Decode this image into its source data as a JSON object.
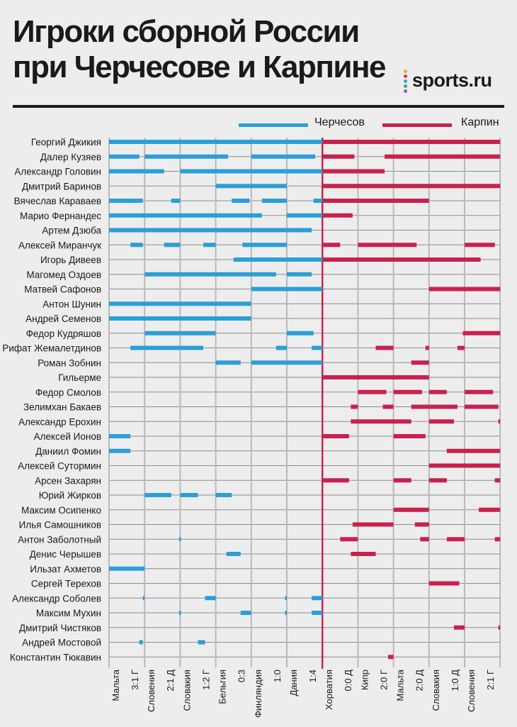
{
  "header": {
    "title_line1": "Игроки сборной России",
    "title_line2": "при Черчесове и Карпине",
    "logo_text": "sports.ru",
    "logo_dot_colors": [
      "#f6a91e",
      "#d93a3a",
      "#3aa0d8",
      "#2fb36b",
      "#9a58b8"
    ]
  },
  "legend": [
    {
      "label": "Черчесов",
      "color": "#2b9fd6"
    },
    {
      "label": "Карпин",
      "color": "#c8214e"
    }
  ],
  "chart_data": {
    "type": "timeline",
    "title": "Игроки сборной России при Черчесове и Карпине",
    "coach_change_after_match": 6,
    "coaches": [
      {
        "name": "Черчесов",
        "color": "#2b9fd6",
        "from_match": 0,
        "to_match": 6
      },
      {
        "name": "Карпин",
        "color": "#c8214e",
        "from_match": 6,
        "to_match": 11
      }
    ],
    "matches": [
      {
        "opponent": "Мальта",
        "score": "3:1 Г"
      },
      {
        "opponent": "Словения",
        "score": "2:1 Д"
      },
      {
        "opponent": "Словакия",
        "score": "1:2 Г"
      },
      {
        "opponent": "Бельгия",
        "score": "0:3"
      },
      {
        "opponent": "Финляндия",
        "score": "1:0"
      },
      {
        "opponent": "Дания",
        "score": "1:4"
      },
      {
        "opponent": "Хорватия",
        "score": "0:0 Д"
      },
      {
        "opponent": "Кипр",
        "score": "2:0 Г"
      },
      {
        "opponent": "Мальта",
        "score": "2:0 Д"
      },
      {
        "opponent": "Словакия",
        "score": "1:0 Д"
      },
      {
        "opponent": "Словения",
        "score": "2:1 Г"
      }
    ],
    "unit_note": "each segment is [start, end] in match units (0..11); fractional values = minute within match",
    "players": [
      {
        "name": "Георгий Джикия",
        "segments": [
          [
            0,
            11
          ]
        ]
      },
      {
        "name": "Далер Кузяев",
        "segments": [
          [
            0,
            0.85
          ],
          [
            1,
            3.35
          ],
          [
            4,
            5.8
          ],
          [
            6,
            6.9
          ],
          [
            7.75,
            11
          ]
        ]
      },
      {
        "name": "Александр Головин",
        "segments": [
          [
            0,
            1.55
          ],
          [
            2,
            7.75
          ]
        ]
      },
      {
        "name": "Дмитрий Баринов",
        "segments": [
          [
            3,
            5
          ],
          [
            6,
            11
          ]
        ]
      },
      {
        "name": "Вячеслав Караваев",
        "segments": [
          [
            0,
            0.95
          ],
          [
            1.75,
            2
          ],
          [
            3.45,
            3.95
          ],
          [
            4.3,
            5
          ],
          [
            5.75,
            9
          ]
        ]
      },
      {
        "name": "Марио Фернандес",
        "segments": [
          [
            0,
            4.3
          ],
          [
            5,
            6
          ],
          [
            6,
            6.85
          ]
        ]
      },
      {
        "name": "Артем Дзюба",
        "segments": [
          [
            0,
            5.7
          ]
        ]
      },
      {
        "name": "Алексей Миранчук",
        "segments": [
          [
            0.6,
            0.95
          ],
          [
            1.55,
            2
          ],
          [
            2.65,
            3
          ],
          [
            3.75,
            5
          ],
          [
            6,
            6.5
          ],
          [
            7,
            8.65
          ],
          [
            10,
            10.85
          ]
        ]
      },
      {
        "name": "Игорь Дивеев",
        "segments": [
          [
            3.5,
            10.45
          ]
        ]
      },
      {
        "name": "Магомед Оздоев",
        "segments": [
          [
            1,
            4.7
          ],
          [
            5,
            5.7
          ]
        ]
      },
      {
        "name": "Матвей Сафонов",
        "segments": [
          [
            4,
            6
          ],
          [
            9,
            11
          ]
        ]
      },
      {
        "name": "Антон Шунин",
        "segments": [
          [
            0,
            4
          ]
        ]
      },
      {
        "name": "Андрей Семенов",
        "segments": [
          [
            0,
            4
          ]
        ]
      },
      {
        "name": "Федор Кудряшов",
        "segments": [
          [
            1,
            3
          ],
          [
            5,
            5.75
          ],
          [
            9.95,
            11
          ]
        ]
      },
      {
        "name": "Рифат Жемалетдинов",
        "segments": [
          [
            0.6,
            2.65
          ],
          [
            4.7,
            5
          ],
          [
            5.7,
            6
          ],
          [
            7.5,
            8
          ],
          [
            8.9,
            9
          ],
          [
            9.8,
            10
          ]
        ]
      },
      {
        "name": "Роман Зобнин",
        "segments": [
          [
            3,
            3.7
          ],
          [
            4,
            6
          ],
          [
            8.5,
            9
          ]
        ]
      },
      {
        "name": "Гильерме",
        "segments": [
          [
            6,
            9
          ]
        ]
      },
      {
        "name": "Федор Смолов",
        "segments": [
          [
            7,
            7.8
          ],
          [
            8,
            8.8
          ],
          [
            9,
            9.5
          ],
          [
            10,
            10.8
          ]
        ]
      },
      {
        "name": "Зелимхан Бакаев",
        "segments": [
          [
            6.8,
            7
          ],
          [
            7.7,
            8
          ],
          [
            8.5,
            9
          ],
          [
            9,
            9.8
          ],
          [
            10,
            10.95
          ]
        ]
      },
      {
        "name": "Александр Ерохин",
        "segments": [
          [
            6.8,
            8.5
          ],
          [
            9,
            9.7
          ],
          [
            10.95,
            11
          ]
        ]
      },
      {
        "name": "Алексей Ионов",
        "segments": [
          [
            0,
            0.6
          ],
          [
            6,
            6.75
          ],
          [
            8,
            8.9
          ]
        ]
      },
      {
        "name": "Даниил Фомин",
        "segments": [
          [
            0,
            0.6
          ],
          [
            9.5,
            11
          ]
        ]
      },
      {
        "name": "Алексей Сутормин",
        "segments": [
          [
            9,
            11
          ]
        ]
      },
      {
        "name": "Арсен Захарян",
        "segments": [
          [
            6,
            6.75
          ],
          [
            8,
            8.5
          ],
          [
            9,
            9.5
          ],
          [
            10.85,
            11
          ]
        ]
      },
      {
        "name": "Юрий Жирков",
        "segments": [
          [
            1,
            1.75
          ],
          [
            2,
            2.5
          ],
          [
            3,
            3.45
          ]
        ]
      },
      {
        "name": "Максим Осипенко",
        "segments": [
          [
            8,
            9
          ],
          [
            10.4,
            11
          ]
        ]
      },
      {
        "name": "Илья Самошников",
        "segments": [
          [
            6.85,
            7
          ],
          [
            7,
            8
          ],
          [
            8.6,
            9
          ]
        ]
      },
      {
        "name": "Антон Заболотный",
        "segments": [
          [
            1.97,
            2.02
          ],
          [
            6.5,
            7
          ],
          [
            8.75,
            9
          ],
          [
            9.5,
            10
          ],
          [
            10.85,
            11
          ]
        ]
      },
      {
        "name": "Денис Черышев",
        "segments": [
          [
            3.3,
            3.7
          ],
          [
            6.8,
            7
          ],
          [
            7,
            7.5
          ]
        ]
      },
      {
        "name": "Ильзат Ахметов",
        "segments": [
          [
            0,
            1
          ]
        ]
      },
      {
        "name": "Сергей Терехов",
        "segments": [
          [
            9,
            9.85
          ]
        ]
      },
      {
        "name": "Александр Соболев",
        "segments": [
          [
            0.95,
            1
          ],
          [
            2.7,
            3
          ],
          [
            4.95,
            5
          ],
          [
            5.7,
            6
          ]
        ]
      },
      {
        "name": "Максим Мухин",
        "segments": [
          [
            1.97,
            2.02
          ],
          [
            3.7,
            4
          ],
          [
            4.95,
            5
          ],
          [
            5.7,
            6
          ]
        ]
      },
      {
        "name": "Дмитрий Чистяков",
        "segments": [
          [
            9.7,
            10
          ],
          [
            10.95,
            11
          ]
        ]
      },
      {
        "name": "Андрей Мостовой",
        "segments": [
          [
            0.85,
            0.95
          ],
          [
            2.5,
            2.7
          ]
        ]
      },
      {
        "name": "Константин Тюкавин",
        "segments": [
          [
            7.85,
            8
          ]
        ]
      }
    ]
  }
}
